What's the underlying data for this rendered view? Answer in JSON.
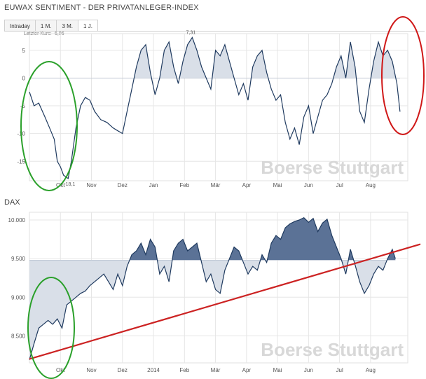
{
  "header": {
    "title": "EUWAX SENTIMENT - DER PRIVATANLEGER-INDEX",
    "tabs": [
      {
        "label": "Intraday",
        "active": false
      },
      {
        "label": "1 M.",
        "active": false
      },
      {
        "label": "3 M.",
        "active": false
      },
      {
        "label": "1 J.",
        "active": true
      }
    ],
    "last_price_label": "Letzter Kurs: -6,06"
  },
  "dax_title": "DAX",
  "watermark": "Boerse Stuttgart",
  "colors": {
    "line": "#1f3a5f",
    "fill_light": "#d9dfe8",
    "fill_dark": "#5b7296",
    "trend_line": "#cc2222",
    "annotation_green": "#2aa02a",
    "annotation_red": "#d01818",
    "grid": "#e6e6e6"
  },
  "chart_data": [
    {
      "type": "area",
      "name": "euwax-sentiment",
      "baseline": 0,
      "ylim": [
        -18.5,
        8
      ],
      "yticks": [
        5,
        0,
        -5,
        -10,
        -15
      ],
      "ytick_labels": [
        "5",
        "0",
        "-5",
        "-10",
        "-15"
      ],
      "months": [
        "Okt",
        "Nov",
        "Dez",
        "Jan",
        "Feb",
        "Mär",
        "Apr",
        "Mai",
        "Jun",
        "Jul",
        "Aug"
      ],
      "month_positions": [
        1,
        2,
        3,
        4,
        5,
        6,
        7,
        8,
        9,
        10,
        11
      ],
      "annotations": [
        {
          "text": "7,31"
        },
        {
          "text": "-18,1"
        }
      ],
      "x": [
        0.0,
        0.15,
        0.3,
        0.5,
        0.65,
        0.8,
        0.9,
        1.0,
        1.1,
        1.25,
        1.35,
        1.5,
        1.65,
        1.8,
        1.95,
        2.1,
        2.3,
        2.5,
        2.7,
        2.85,
        3.0,
        3.15,
        3.3,
        3.45,
        3.6,
        3.75,
        3.9,
        4.05,
        4.2,
        4.35,
        4.5,
        4.65,
        4.8,
        4.95,
        5.1,
        5.25,
        5.4,
        5.55,
        5.7,
        5.85,
        6.0,
        6.15,
        6.3,
        6.45,
        6.6,
        6.75,
        6.9,
        7.05,
        7.2,
        7.35,
        7.5,
        7.65,
        7.8,
        7.95,
        8.1,
        8.25,
        8.4,
        8.55,
        8.7,
        8.85,
        9.0,
        9.15,
        9.3,
        9.45,
        9.6,
        9.75,
        9.9,
        10.05,
        10.2,
        10.35,
        10.5,
        10.65,
        10.8,
        10.95,
        11.1,
        11.25,
        11.4,
        11.55,
        11.7,
        11.85,
        11.95
      ],
      "values": [
        -2.5,
        -5,
        -4.5,
        -7,
        -9,
        -11,
        -15,
        -16,
        -17.5,
        -18.1,
        -15,
        -9,
        -5,
        -3.5,
        -4,
        -6,
        -7.5,
        -8,
        -9,
        -9.5,
        -10,
        -6,
        -2,
        2,
        5,
        6,
        1,
        -3,
        0,
        5,
        6.5,
        2,
        -1,
        3,
        6,
        7.31,
        5,
        2,
        0,
        -2,
        5,
        4,
        6,
        3,
        0,
        -3,
        -1,
        -4,
        2,
        4,
        5,
        1,
        -2,
        -4,
        -3,
        -8,
        -11,
        -9,
        -12,
        -7,
        -5,
        -10,
        -7,
        -4,
        -3,
        -1,
        2,
        4,
        0,
        6.5,
        2,
        -6,
        -8,
        -2,
        3,
        6.5,
        4,
        5,
        3,
        -1,
        -6.06
      ]
    },
    {
      "type": "area",
      "name": "dax",
      "baseline": 9480,
      "ylim": [
        8150,
        10100
      ],
      "yticks": [
        10000,
        9500,
        9000,
        8500
      ],
      "ytick_labels": [
        "10.000",
        "9.500",
        "9.000",
        "8.500"
      ],
      "months": [
        "Okt",
        "Nov",
        "Dez",
        "2014",
        "Feb",
        "Mär",
        "Apr",
        "Mai",
        "Jun",
        "Jul",
        "Aug"
      ],
      "month_positions": [
        1,
        2,
        3,
        4,
        5,
        6,
        7,
        8,
        9,
        10,
        11
      ],
      "trend_line": {
        "x": [
          0.0,
          12.2
        ],
        "values": [
          8200,
          9650
        ]
      },
      "x": [
        0.0,
        0.15,
        0.3,
        0.45,
        0.6,
        0.75,
        0.9,
        1.05,
        1.2,
        1.35,
        1.5,
        1.65,
        1.8,
        1.95,
        2.1,
        2.25,
        2.4,
        2.55,
        2.7,
        2.85,
        3.0,
        3.15,
        3.3,
        3.45,
        3.6,
        3.75,
        3.9,
        4.05,
        4.2,
        4.35,
        4.5,
        4.65,
        4.8,
        4.95,
        5.1,
        5.25,
        5.4,
        5.55,
        5.7,
        5.85,
        6.0,
        6.15,
        6.3,
        6.45,
        6.6,
        6.75,
        6.9,
        7.05,
        7.2,
        7.35,
        7.5,
        7.65,
        7.8,
        7.95,
        8.1,
        8.25,
        8.4,
        8.55,
        8.7,
        8.85,
        9.0,
        9.15,
        9.3,
        9.45,
        9.6,
        9.75,
        9.9,
        10.05,
        10.2,
        10.35,
        10.5,
        10.65,
        10.8,
        10.95,
        11.1,
        11.25,
        11.4,
        11.55,
        11.7,
        11.8
      ],
      "values": [
        8190,
        8400,
        8600,
        8650,
        8700,
        8650,
        8720,
        8600,
        8900,
        8950,
        9000,
        9050,
        9080,
        9150,
        9200,
        9250,
        9300,
        9200,
        9100,
        9300,
        9150,
        9400,
        9550,
        9600,
        9700,
        9550,
        9750,
        9650,
        9300,
        9400,
        9200,
        9600,
        9700,
        9750,
        9600,
        9650,
        9700,
        9450,
        9200,
        9300,
        9100,
        9050,
        9350,
        9500,
        9650,
        9600,
        9450,
        9300,
        9400,
        9350,
        9550,
        9450,
        9700,
        9800,
        9750,
        9900,
        9950,
        9980,
        10000,
        10030,
        9970,
        10020,
        9850,
        9960,
        10010,
        9800,
        9650,
        9500,
        9300,
        9620,
        9420,
        9200,
        9050,
        9150,
        9300,
        9400,
        9350,
        9500,
        9620,
        9500
      ]
    }
  ]
}
